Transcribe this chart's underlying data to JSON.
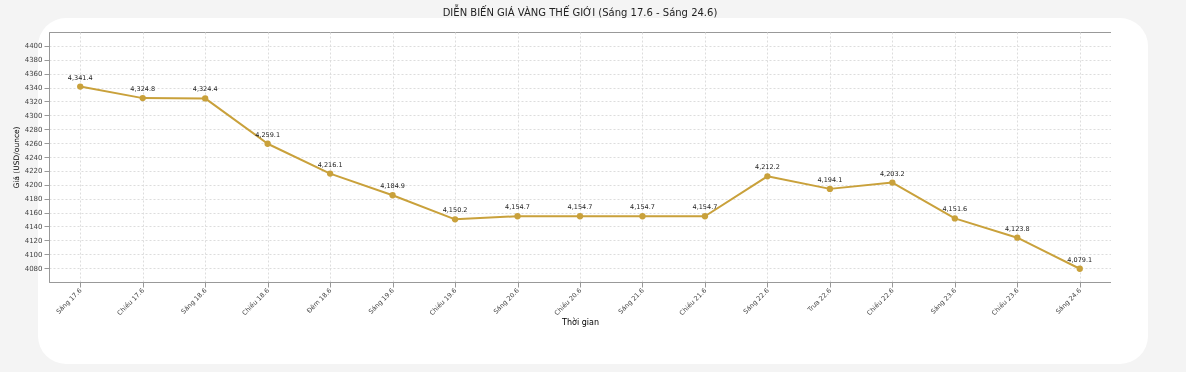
{
  "chart_data": {
    "type": "line",
    "title": "DIỄN BIẾN GIÁ VÀNG THẾ GIỚI (Sáng 17.6 - Sáng 24.6)",
    "xlabel": "Thời gian",
    "ylabel": "Giá (USD/ounce)",
    "categories": [
      "Sáng 17.6",
      "Chiều 17.6",
      "Sáng 18.6",
      "Chiều 18.6",
      "Đêm 18.6",
      "Sáng 19.6",
      "Chiều 19.6",
      "Sáng 20.6",
      "Chiều 20.6",
      "Sáng 21.6",
      "Chiều 21.6",
      "Sáng 22.6",
      "Trưa 22.6",
      "Chiều 22.6",
      "Sáng 23.6",
      "Chiều 23.6",
      "Sáng 24.6"
    ],
    "series": [
      {
        "color": "#c9a13b",
        "values": [
          4341.4,
          4324.8,
          4324.4,
          4259.1,
          4216.1,
          4184.9,
          4150.2,
          4154.7,
          4154.7,
          4154.7,
          4154.7,
          4212.2,
          4194.1,
          4203.2,
          4151.6,
          4123.8,
          4079.1
        ]
      }
    ],
    "value_labels": [
      "4,341.4",
      "4,324.8",
      "4,324.4",
      "4,259.1",
      "4,216.1",
      "4,184.9",
      "4,150.2",
      "4,154.7",
      "4,154.7",
      "4,154.7",
      "4,154.7",
      "4,212.2",
      "4,194.1",
      "4,203.2",
      "4,151.6",
      "4,123.8",
      "4,079.1"
    ],
    "ylim": [
      4060,
      4420
    ],
    "yticks": [
      4080,
      4100,
      4120,
      4140,
      4160,
      4180,
      4200,
      4220,
      4240,
      4260,
      4280,
      4300,
      4320,
      4340,
      4360,
      4380,
      4400
    ],
    "grid": true,
    "marker": "circle",
    "line_style": "solid"
  }
}
